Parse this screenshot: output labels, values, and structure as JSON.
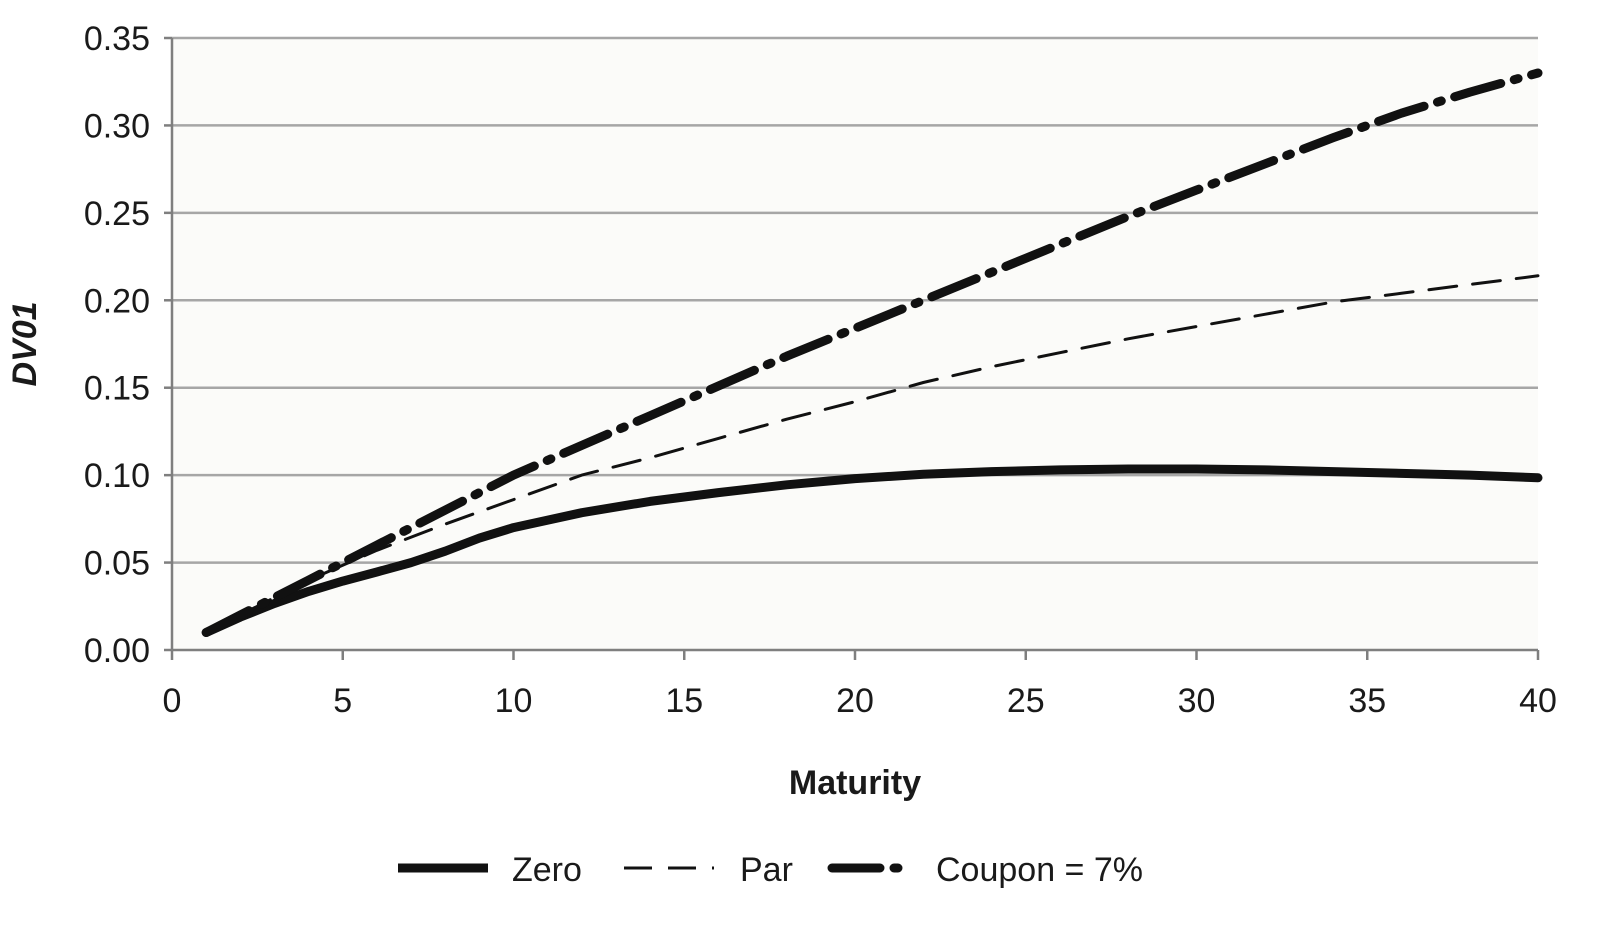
{
  "chart_data": {
    "type": "line",
    "xlabel": "Maturity",
    "ylabel": "DV01",
    "xlim": [
      0,
      40
    ],
    "ylim": [
      0,
      0.35
    ],
    "x_ticks": [
      0,
      5,
      10,
      15,
      20,
      25,
      30,
      35,
      40
    ],
    "y_ticks": [
      0.0,
      0.05,
      0.1,
      0.15,
      0.2,
      0.25,
      0.3,
      0.35
    ],
    "grid": "horizontal",
    "legend_position": "bottom",
    "plot_background": "#fbfbf9",
    "line_color": "#111111",
    "series": [
      {
        "name": "Zero",
        "style": "solid-thick",
        "x": [
          1,
          2,
          3,
          4,
          5,
          6,
          7,
          8,
          9,
          10,
          12,
          14,
          16,
          18,
          20,
          22,
          24,
          26,
          28,
          30,
          32,
          34,
          36,
          38,
          40
        ],
        "y": [
          0.01,
          0.0188,
          0.0266,
          0.0335,
          0.0394,
          0.0446,
          0.05,
          0.0565,
          0.064,
          0.07,
          0.0785,
          0.085,
          0.09,
          0.0945,
          0.098,
          0.1005,
          0.102,
          0.103,
          0.1035,
          0.1035,
          0.103,
          0.102,
          0.101,
          0.1,
          0.0985
        ]
      },
      {
        "name": "Par",
        "style": "dashed-thin",
        "x": [
          1,
          2,
          4,
          6,
          8,
          10,
          12,
          14,
          16,
          18,
          20,
          22,
          24,
          26,
          28,
          30,
          32,
          34,
          36,
          38,
          40
        ],
        "y": [
          0.01,
          0.02,
          0.04,
          0.057,
          0.072,
          0.086,
          0.1,
          0.11,
          0.121,
          0.132,
          0.142,
          0.153,
          0.162,
          0.17,
          0.178,
          0.185,
          0.192,
          0.199,
          0.204,
          0.209,
          0.214
        ]
      },
      {
        "name": "Coupon = 7%",
        "style": "dashdot-thick",
        "x": [
          1,
          2,
          4,
          6,
          8,
          10,
          12,
          14,
          16,
          18,
          20,
          22,
          24,
          26,
          28,
          30,
          32,
          34,
          36,
          38,
          40
        ],
        "y": [
          0.01,
          0.02,
          0.04,
          0.06,
          0.08,
          0.1,
          0.117,
          0.134,
          0.151,
          0.168,
          0.184,
          0.2,
          0.216,
          0.232,
          0.248,
          0.263,
          0.278,
          0.293,
          0.307,
          0.319,
          0.33
        ]
      }
    ]
  }
}
